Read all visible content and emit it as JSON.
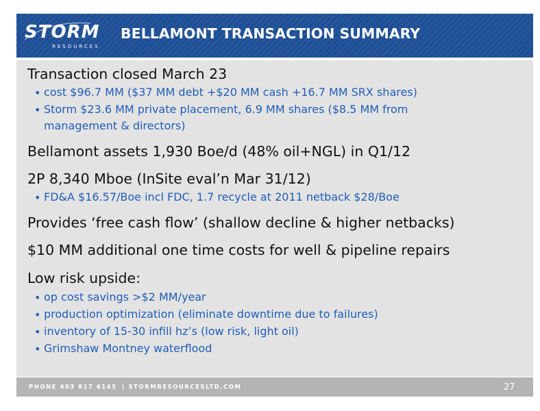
{
  "header": {
    "logo_text": "STORM",
    "logo_subtext": "RESOURCES",
    "title": "BELLAMONT TRANSACTION SUMMARY"
  },
  "content": {
    "lines": [
      {
        "level": 1,
        "text": "Transaction closed March 23"
      },
      {
        "level": 2,
        "text": "cost $96.7 MM ($37 MM debt +$20 MM cash +16.7 MM SRX shares)"
      },
      {
        "level": 2,
        "text": "Storm $23.6 MM private placement, 6.9 MM shares ($8.5 MM from"
      },
      {
        "level": 2,
        "text": "management & directors)",
        "continuation": true
      },
      {
        "level": 1,
        "text": "Bellamont assets 1,930 Boe/d (48% oil+NGL) in Q1/12"
      },
      {
        "level": 1,
        "text": "2P 8,340 Mboe (InSite eval’n Mar 31/12)"
      },
      {
        "level": 2,
        "text": "FD&A $16.57/Boe incl FDC, 1.7 recycle at 2011 netback $28/Boe"
      },
      {
        "level": 1,
        "text": "Provides ‘free cash flow’ (shallow decline & higher netbacks)"
      },
      {
        "level": 1,
        "text": "$10 MM additional one time costs for well & pipeline repairs"
      },
      {
        "level": 1,
        "text": "Low risk upside:"
      },
      {
        "level": 2,
        "text": "op cost savings >$2 MM/year"
      },
      {
        "level": 2,
        "text": "production optimization (eliminate downtime due to failures)"
      },
      {
        "level": 2,
        "text": "inventory of 15-30 infill hz’s (low risk, light oil)"
      },
      {
        "level": 2,
        "text": "Grimshaw Montney waterflood"
      }
    ]
  },
  "footer": {
    "phone": "PHONE 403 817 6145",
    "website": "STORMRESOURCESLTD.COM",
    "page_number": "27"
  },
  "colors": {
    "header_blue": "#1e4f96",
    "panel_gray": "#e3e3e3",
    "sub_bullet_blue": "#1f5eb8",
    "footer_gray": "#b4b4b4"
  }
}
